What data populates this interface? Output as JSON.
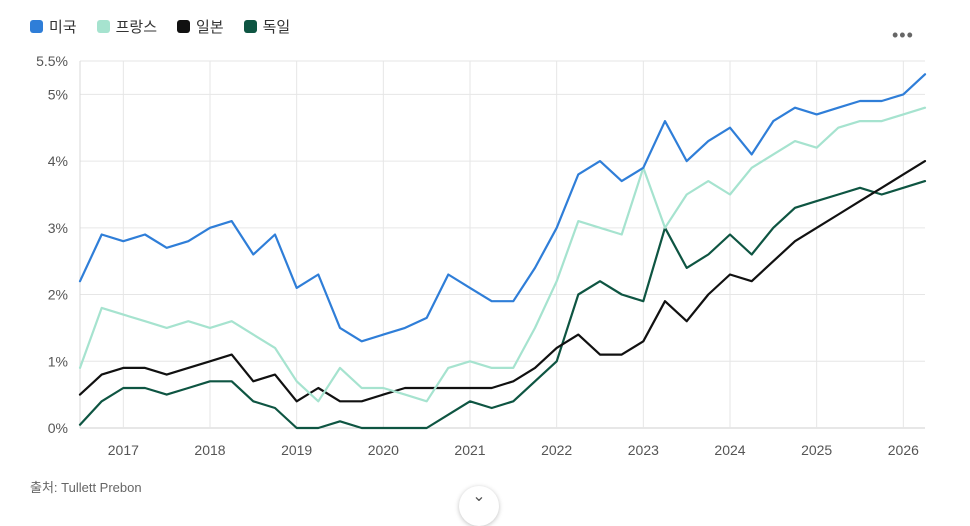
{
  "legend": {
    "items": [
      {
        "label": "미국",
        "color": "#2f7ed8"
      },
      {
        "label": "프랑스",
        "color": "#a6e3cf"
      },
      {
        "label": "일본",
        "color": "#111111"
      },
      {
        "label": "독일",
        "color": "#0e5542"
      }
    ]
  },
  "menu": {
    "icon": "more-horizontal-icon",
    "glyph": "•••"
  },
  "source": {
    "text": "출처: Tullett Prebon"
  },
  "scroll": {
    "icon": "chevron-down-icon",
    "glyph": "⌄"
  },
  "chart_data": {
    "type": "line",
    "title": "",
    "xlabel": "",
    "ylabel": "",
    "xlim": [
      2016.5,
      2026.25
    ],
    "ylim": [
      0,
      5.5
    ],
    "grid": true,
    "legend_position": "top-left",
    "x_ticks": [
      2017,
      2018,
      2019,
      2020,
      2021,
      2022,
      2023,
      2024,
      2025,
      2026
    ],
    "x_tick_labels": [
      "2017",
      "2018",
      "2019",
      "2020",
      "2021",
      "2022",
      "2023",
      "2024",
      "2025",
      "2026"
    ],
    "y_ticks": [
      0,
      1,
      2,
      3,
      4,
      5,
      5.5
    ],
    "y_tick_labels": [
      "0%",
      "1%",
      "2%",
      "3%",
      "4%",
      "5%",
      "5.5%"
    ],
    "series": [
      {
        "name": "미국",
        "color": "#2f7ed8",
        "x": [
          2016.5,
          2016.75,
          2017.0,
          2017.25,
          2017.5,
          2017.75,
          2018.0,
          2018.25,
          2018.5,
          2018.75,
          2019.0,
          2019.25,
          2019.5,
          2019.75,
          2020.0,
          2020.25,
          2020.5,
          2020.75,
          2021.0,
          2021.25,
          2021.5,
          2021.75,
          2022.0,
          2022.25,
          2022.5,
          2022.75,
          2023.0,
          2023.25,
          2023.5,
          2023.75,
          2024.0,
          2024.25,
          2024.5,
          2024.75,
          2025.0,
          2025.25,
          2025.5,
          2025.75,
          2026.0,
          2026.25
        ],
        "y": [
          2.2,
          2.9,
          2.8,
          2.9,
          2.7,
          2.8,
          3.0,
          3.1,
          2.6,
          2.9,
          2.1,
          2.3,
          1.5,
          1.3,
          1.4,
          1.5,
          1.65,
          2.3,
          2.1,
          1.9,
          1.9,
          2.4,
          3.0,
          3.8,
          4.0,
          3.7,
          3.9,
          4.6,
          4.0,
          4.3,
          4.5,
          4.1,
          4.6,
          4.8,
          4.7,
          4.8,
          4.9,
          4.9,
          5.0,
          5.3
        ]
      },
      {
        "name": "프랑스",
        "color": "#a6e3cf",
        "x": [
          2016.5,
          2016.75,
          2017.0,
          2017.25,
          2017.5,
          2017.75,
          2018.0,
          2018.25,
          2018.5,
          2018.75,
          2019.0,
          2019.25,
          2019.5,
          2019.75,
          2020.0,
          2020.25,
          2020.5,
          2020.75,
          2021.0,
          2021.25,
          2021.5,
          2021.75,
          2022.0,
          2022.25,
          2022.5,
          2022.75,
          2023.0,
          2023.25,
          2023.5,
          2023.75,
          2024.0,
          2024.25,
          2024.5,
          2024.75,
          2025.0,
          2025.25,
          2025.5,
          2025.75,
          2026.0,
          2026.25
        ],
        "y": [
          0.9,
          1.8,
          1.7,
          1.6,
          1.5,
          1.6,
          1.5,
          1.6,
          1.4,
          1.2,
          0.7,
          0.4,
          0.9,
          0.6,
          0.6,
          0.5,
          0.4,
          0.9,
          1.0,
          0.9,
          0.9,
          1.5,
          2.2,
          3.1,
          3.0,
          2.9,
          3.9,
          3.0,
          3.5,
          3.7,
          3.5,
          3.9,
          4.1,
          4.3,
          4.2,
          4.5,
          4.6,
          4.6,
          4.7,
          4.8
        ]
      },
      {
        "name": "일본",
        "color": "#111111",
        "x": [
          2016.5,
          2016.75,
          2017.0,
          2017.25,
          2017.5,
          2017.75,
          2018.0,
          2018.25,
          2018.5,
          2018.75,
          2019.0,
          2019.25,
          2019.5,
          2019.75,
          2020.0,
          2020.25,
          2020.5,
          2020.75,
          2021.0,
          2021.25,
          2021.5,
          2021.75,
          2022.0,
          2022.25,
          2022.5,
          2022.75,
          2023.0,
          2023.25,
          2023.5,
          2023.75,
          2024.0,
          2024.25,
          2024.5,
          2024.75,
          2025.0,
          2025.25,
          2025.5,
          2025.75,
          2026.0,
          2026.25
        ],
        "y": [
          0.5,
          0.8,
          0.9,
          0.9,
          0.8,
          0.9,
          1.0,
          1.1,
          0.7,
          0.8,
          0.4,
          0.6,
          0.4,
          0.4,
          0.5,
          0.6,
          0.6,
          0.6,
          0.6,
          0.6,
          0.7,
          0.9,
          1.2,
          1.4,
          1.1,
          1.1,
          1.3,
          1.9,
          1.6,
          2.0,
          2.3,
          2.2,
          2.5,
          2.8,
          3.0,
          3.2,
          3.4,
          3.6,
          3.8,
          4.0
        ]
      },
      {
        "name": "독일",
        "color": "#0e5542",
        "x": [
          2016.5,
          2016.75,
          2017.0,
          2017.25,
          2017.5,
          2017.75,
          2018.0,
          2018.25,
          2018.5,
          2018.75,
          2019.0,
          2019.25,
          2019.5,
          2019.75,
          2020.0,
          2020.25,
          2020.5,
          2020.75,
          2021.0,
          2021.25,
          2021.5,
          2021.75,
          2022.0,
          2022.25,
          2022.5,
          2022.75,
          2023.0,
          2023.25,
          2023.5,
          2023.75,
          2024.0,
          2024.25,
          2024.5,
          2024.75,
          2025.0,
          2025.25,
          2025.5,
          2025.75,
          2026.0,
          2026.25
        ],
        "y": [
          0.05,
          0.4,
          0.6,
          0.6,
          0.5,
          0.6,
          0.7,
          0.7,
          0.4,
          0.3,
          0.0,
          0.0,
          0.1,
          0.0,
          0.0,
          0.0,
          0.0,
          0.2,
          0.4,
          0.3,
          0.4,
          0.7,
          1.0,
          2.0,
          2.2,
          2.0,
          1.9,
          3.0,
          2.4,
          2.6,
          2.9,
          2.6,
          3.0,
          3.3,
          3.4,
          3.5,
          3.6,
          3.5,
          3.6,
          3.7
        ]
      }
    ]
  }
}
